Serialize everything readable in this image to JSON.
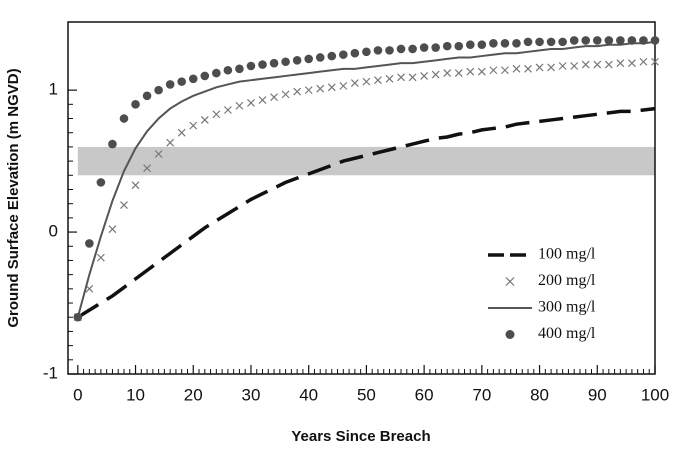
{
  "chart_data": {
    "type": "line",
    "x_label": "Years Since Breach",
    "y_label": "Ground Surface Elevation (m NGVD)",
    "xlim": [
      -1.7,
      100
    ],
    "ylim": [
      -1,
      1.48
    ],
    "xticks": [
      0,
      10,
      20,
      30,
      40,
      50,
      60,
      70,
      80,
      90,
      100
    ],
    "yticks": [
      -1,
      0,
      1
    ],
    "band": {
      "ymin": 0.4,
      "ymax": 0.6,
      "color": "#c8c8c8"
    },
    "legend": "lower right",
    "x": [
      0,
      2,
      4,
      6,
      8,
      10,
      12,
      14,
      16,
      18,
      20,
      22,
      24,
      26,
      28,
      30,
      32,
      34,
      36,
      38,
      40,
      42,
      44,
      46,
      48,
      50,
      52,
      54,
      56,
      58,
      60,
      62,
      64,
      66,
      68,
      70,
      72,
      74,
      76,
      78,
      80,
      82,
      84,
      86,
      88,
      90,
      92,
      94,
      96,
      98,
      100
    ],
    "series": [
      {
        "name": "100 mg/l",
        "style": "dashed",
        "color": "#111111",
        "values": [
          -0.6,
          -0.55,
          -0.5,
          -0.45,
          -0.39,
          -0.33,
          -0.27,
          -0.21,
          -0.15,
          -0.09,
          -0.03,
          0.03,
          0.08,
          0.13,
          0.18,
          0.23,
          0.27,
          0.31,
          0.35,
          0.38,
          0.41,
          0.44,
          0.47,
          0.5,
          0.52,
          0.54,
          0.56,
          0.58,
          0.6,
          0.62,
          0.64,
          0.66,
          0.67,
          0.69,
          0.7,
          0.72,
          0.73,
          0.74,
          0.76,
          0.77,
          0.78,
          0.79,
          0.8,
          0.81,
          0.82,
          0.83,
          0.84,
          0.85,
          0.85,
          0.86,
          0.87
        ]
      },
      {
        "name": "200 mg/l",
        "style": "cross",
        "color": "#777777",
        "values": [
          -0.6,
          -0.4,
          -0.18,
          0.02,
          0.19,
          0.33,
          0.45,
          0.55,
          0.63,
          0.7,
          0.75,
          0.79,
          0.83,
          0.86,
          0.89,
          0.91,
          0.93,
          0.95,
          0.97,
          0.99,
          1.0,
          1.01,
          1.02,
          1.03,
          1.05,
          1.06,
          1.07,
          1.08,
          1.09,
          1.09,
          1.1,
          1.11,
          1.12,
          1.12,
          1.13,
          1.13,
          1.14,
          1.14,
          1.15,
          1.15,
          1.16,
          1.16,
          1.17,
          1.17,
          1.18,
          1.18,
          1.18,
          1.19,
          1.19,
          1.2,
          1.2
        ]
      },
      {
        "name": "300 mg/l",
        "style": "line",
        "color": "#555555",
        "values": [
          -0.6,
          -0.3,
          -0.03,
          0.22,
          0.43,
          0.59,
          0.71,
          0.8,
          0.87,
          0.92,
          0.96,
          0.99,
          1.02,
          1.04,
          1.06,
          1.07,
          1.08,
          1.09,
          1.1,
          1.11,
          1.12,
          1.13,
          1.14,
          1.15,
          1.15,
          1.16,
          1.17,
          1.18,
          1.19,
          1.19,
          1.2,
          1.21,
          1.22,
          1.23,
          1.23,
          1.24,
          1.25,
          1.26,
          1.26,
          1.27,
          1.28,
          1.29,
          1.29,
          1.3,
          1.31,
          1.31,
          1.32,
          1.32,
          1.33,
          1.33,
          1.34
        ]
      },
      {
        "name": "400 mg/l",
        "style": "dot",
        "color": "#4d4d4d",
        "values": [
          -0.6,
          -0.08,
          0.35,
          0.62,
          0.8,
          0.9,
          0.96,
          1.0,
          1.04,
          1.06,
          1.08,
          1.1,
          1.12,
          1.14,
          1.15,
          1.17,
          1.18,
          1.19,
          1.2,
          1.21,
          1.22,
          1.23,
          1.24,
          1.25,
          1.26,
          1.27,
          1.28,
          1.28,
          1.29,
          1.29,
          1.3,
          1.3,
          1.31,
          1.31,
          1.32,
          1.32,
          1.33,
          1.33,
          1.33,
          1.34,
          1.34,
          1.34,
          1.34,
          1.35,
          1.35,
          1.35,
          1.35,
          1.35,
          1.35,
          1.35,
          1.35
        ]
      }
    ]
  }
}
